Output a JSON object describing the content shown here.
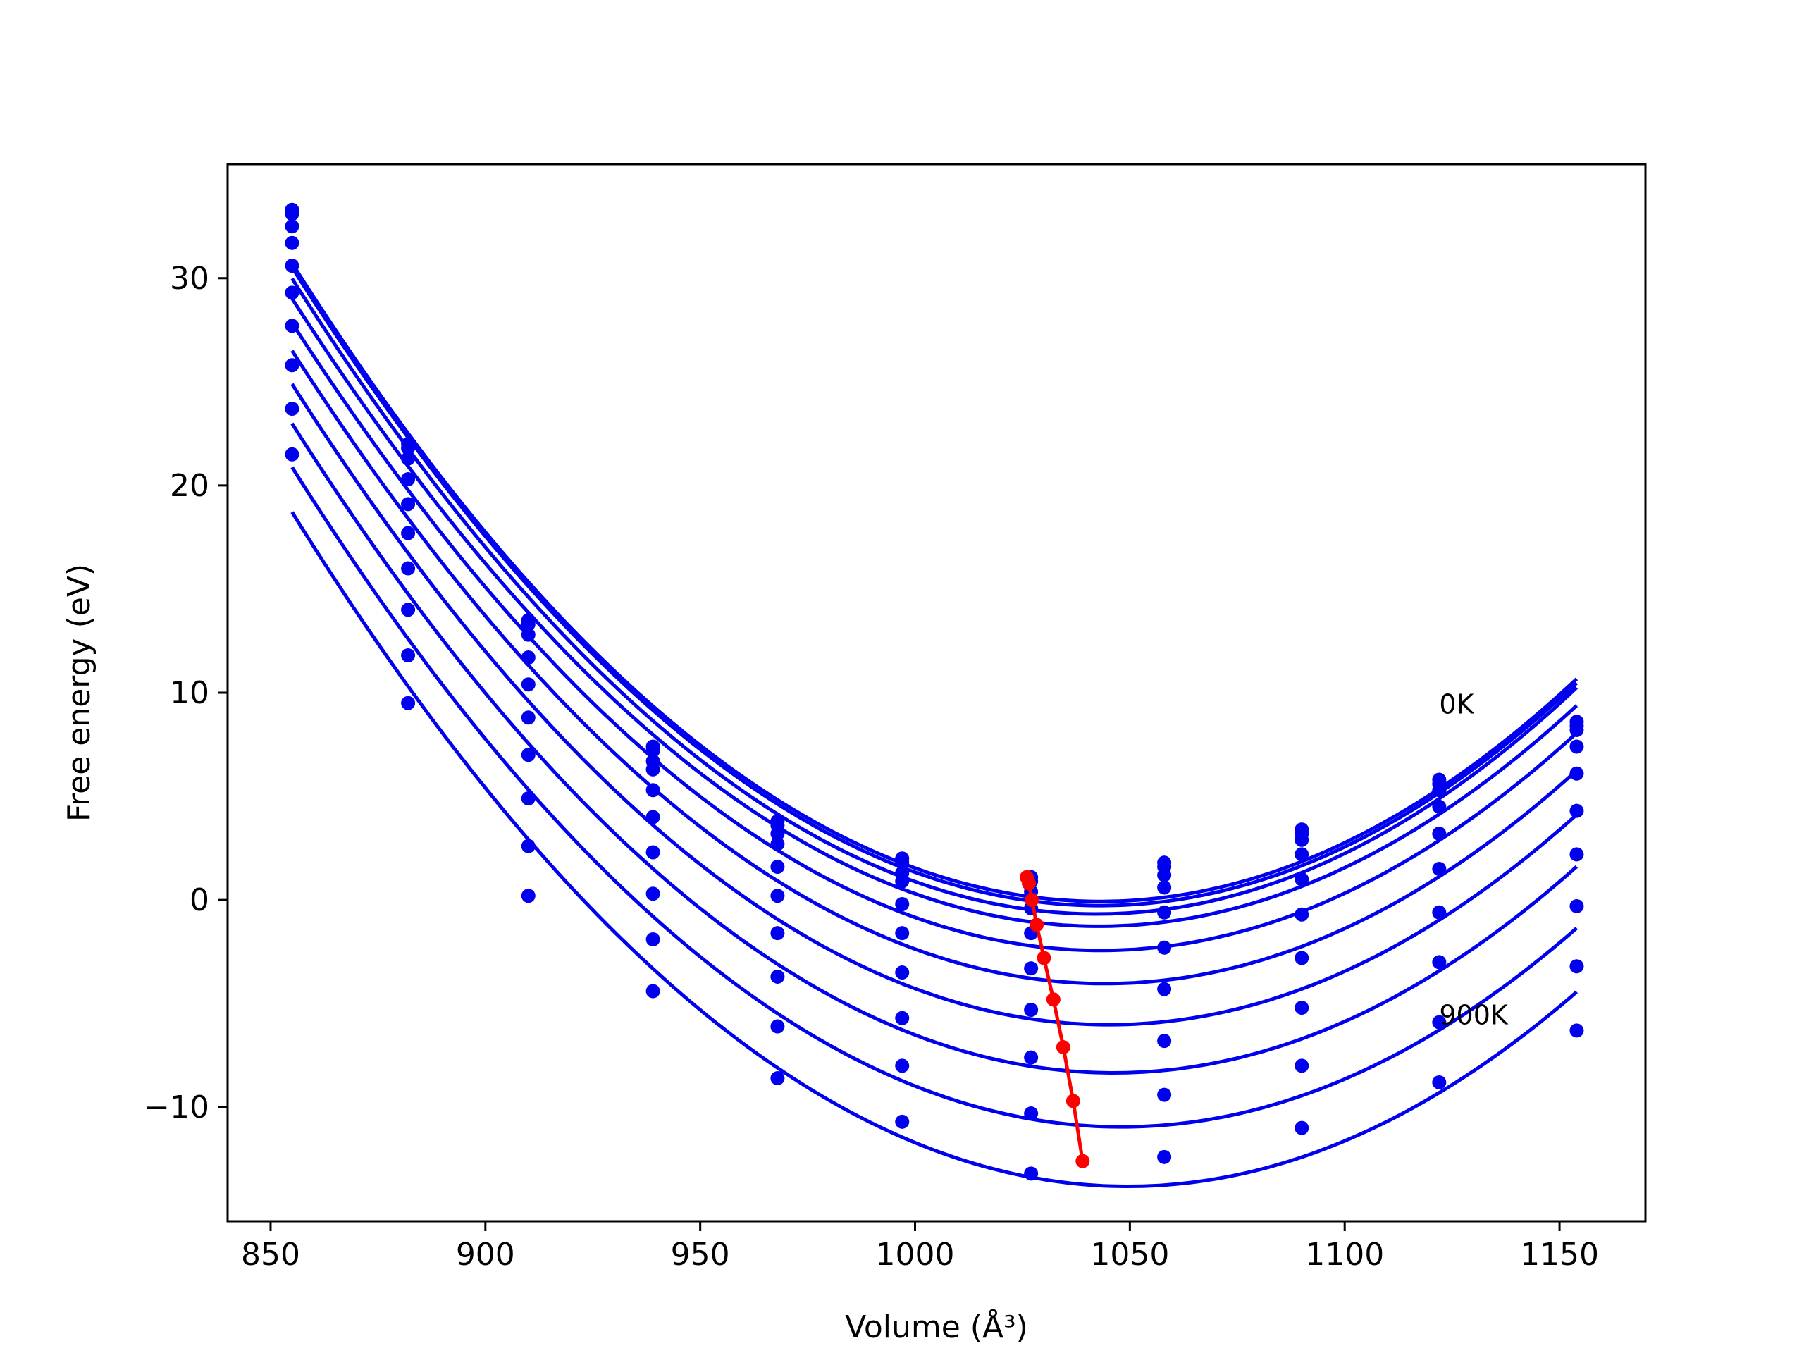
{
  "chart_data": {
    "type": "line",
    "xlabel": "Volume (Å³)",
    "ylabel": "Free energy (eV)",
    "xlim": [
      840,
      1170
    ],
    "ylim": [
      -15.5,
      35.5
    ],
    "xticks": [
      850,
      900,
      950,
      1000,
      1050,
      1100,
      1150
    ],
    "yticks": [
      -10,
      0,
      10,
      20,
      30
    ],
    "ytick_labels": [
      "−10",
      "0",
      "10",
      "20",
      "30"
    ],
    "grid": false,
    "legend": "none",
    "colors": {
      "curves": "#0000ee",
      "minima": "#ff0000"
    },
    "x": [
      855,
      882,
      910,
      939,
      968,
      997,
      1027,
      1058,
      1090,
      1122,
      1154
    ],
    "series": [
      {
        "values": [
          33.3,
          22.0,
          13.5,
          7.4,
          3.8,
          2.0,
          1.1,
          1.8,
          3.4,
          5.8,
          8.6
        ]
      },
      {
        "values": [
          33.1,
          21.8,
          13.3,
          7.2,
          3.6,
          1.8,
          0.9,
          1.6,
          3.2,
          5.6,
          8.4
        ]
      },
      {
        "values": [
          32.5,
          21.3,
          12.8,
          6.7,
          3.2,
          1.3,
          0.4,
          1.2,
          2.9,
          5.3,
          8.2
        ]
      },
      {
        "values": [
          31.7,
          20.3,
          11.7,
          6.3,
          2.7,
          0.9,
          -0.4,
          0.6,
          2.2,
          4.5,
          7.4
        ]
      },
      {
        "values": [
          30.6,
          19.1,
          10.4,
          5.3,
          1.6,
          -0.2,
          -1.6,
          -0.6,
          1.0,
          3.2,
          6.1
        ]
      },
      {
        "values": [
          29.3,
          17.7,
          8.8,
          4.0,
          0.2,
          -1.6,
          -3.3,
          -2.3,
          -0.7,
          1.5,
          4.3
        ]
      },
      {
        "values": [
          27.7,
          16.0,
          7.0,
          2.3,
          -1.6,
          -3.5,
          -5.3,
          -4.3,
          -2.8,
          -0.6,
          2.2
        ]
      },
      {
        "values": [
          25.8,
          14.0,
          4.9,
          0.3,
          -3.7,
          -5.7,
          -7.6,
          -6.8,
          -5.2,
          -3.0,
          -0.3
        ]
      },
      {
        "values": [
          23.7,
          11.8,
          2.6,
          -1.9,
          -6.1,
          -8.0,
          -10.3,
          -9.4,
          -8.0,
          -5.9,
          -3.2
        ]
      },
      {
        "values": [
          21.5,
          9.5,
          0.2,
          -4.4,
          -8.6,
          -10.7,
          -13.2,
          -12.4,
          -11.0,
          -8.8,
          -6.3
        ]
      }
    ],
    "minima": {
      "x": [
        1026,
        1026.5,
        1027.2,
        1028.3,
        1030,
        1032.2,
        1034.5,
        1036.8,
        1039
      ],
      "y": [
        1.1,
        0.8,
        0.0,
        -1.2,
        -2.8,
        -4.8,
        -7.1,
        -9.7,
        -12.6
      ]
    },
    "annotations": [
      {
        "text": "0K",
        "x": 1122,
        "y": 9.0
      },
      {
        "text": "900K",
        "x": 1122,
        "y": -6.0
      }
    ]
  }
}
